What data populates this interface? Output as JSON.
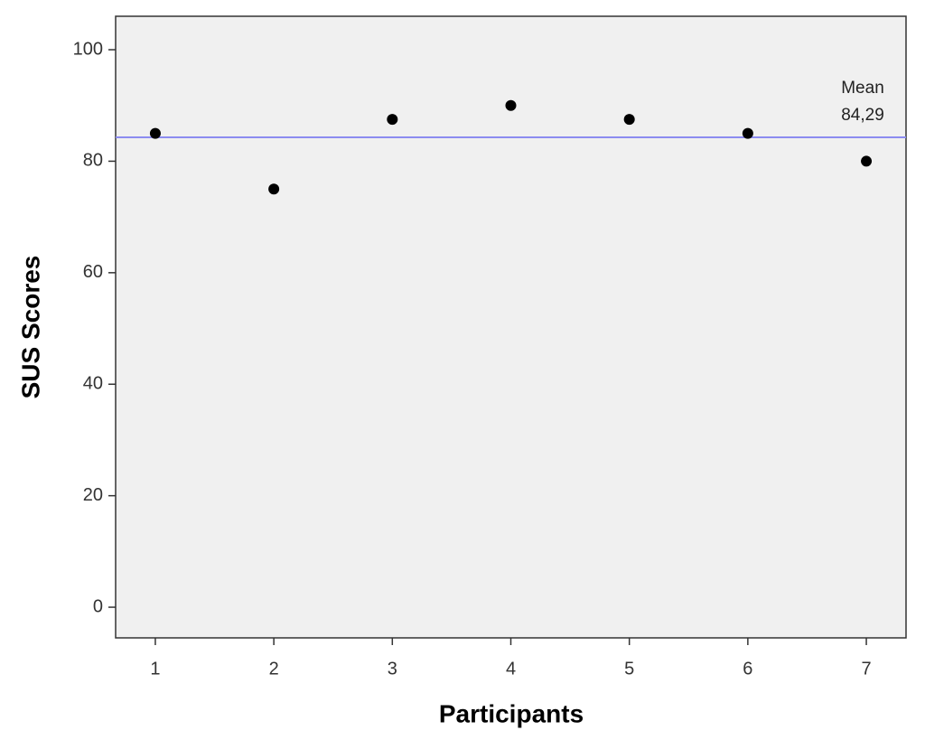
{
  "chart_data": {
    "type": "scatter",
    "x_label": "Participants",
    "y_label": "SUS Scores",
    "x": [
      1,
      2,
      3,
      4,
      5,
      6,
      7
    ],
    "values": [
      85,
      75,
      87.5,
      90,
      87.5,
      85,
      80
    ],
    "color": "#000000",
    "xlim": [
      0.665,
      7.335
    ],
    "xticks": [
      1,
      2,
      3,
      4,
      5,
      6,
      7
    ],
    "ylim": [
      -5.5,
      106
    ],
    "yticks": [
      0,
      20,
      40,
      60,
      80,
      100
    ],
    "grid": false,
    "reference_line": {
      "name": "Mean",
      "value": 84.29,
      "label": "84,29",
      "color": "#8c8cf0"
    }
  }
}
